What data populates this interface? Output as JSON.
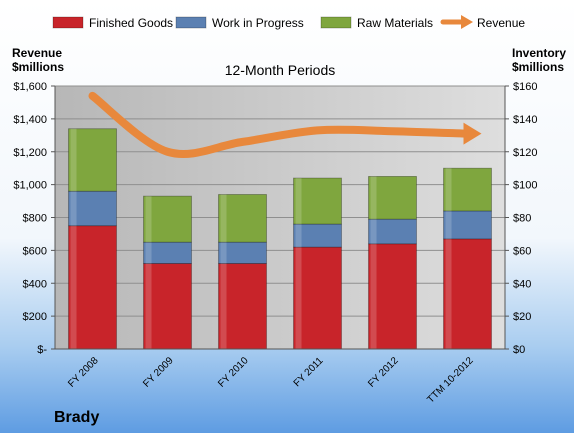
{
  "company": "Brady",
  "colors": {
    "finished_goods": "#c8242a",
    "work_in_progress": "#5b80b2",
    "raw_materials": "#7fa63e",
    "revenue": "#e8883c"
  },
  "chart_data": {
    "type": "bar",
    "subtype": "stacked-with-line",
    "title": "12-Month Periods",
    "left_axis_title": [
      "Revenue",
      "$millions"
    ],
    "right_axis_title": [
      "Inventory",
      "$millions"
    ],
    "categories": [
      "FY 2008",
      "FY 2009",
      "FY 2010",
      "FY 2011",
      "FY 2012",
      "TTM 10-2012"
    ],
    "left_ylim": [
      0,
      1600
    ],
    "right_ylim": [
      0,
      160
    ],
    "left_ticks": [
      {
        "value": 0,
        "label": "$-"
      },
      {
        "value": 200,
        "label": "$200"
      },
      {
        "value": 400,
        "label": "$400"
      },
      {
        "value": 600,
        "label": "$600"
      },
      {
        "value": 800,
        "label": "$800"
      },
      {
        "value": 1000,
        "label": "$1,000"
      },
      {
        "value": 1200,
        "label": "$1,200"
      },
      {
        "value": 1400,
        "label": "$1,400"
      },
      {
        "value": 1600,
        "label": "$1,600"
      }
    ],
    "right_ticks": [
      {
        "value": 0,
        "label": "$0"
      },
      {
        "value": 20,
        "label": "$20"
      },
      {
        "value": 40,
        "label": "$40"
      },
      {
        "value": 60,
        "label": "$60"
      },
      {
        "value": 80,
        "label": "$80"
      },
      {
        "value": 100,
        "label": "$100"
      },
      {
        "value": 120,
        "label": "$120"
      },
      {
        "value": 140,
        "label": "$140"
      },
      {
        "value": 160,
        "label": "$160"
      }
    ],
    "bar_series": [
      {
        "name": "Finished Goods",
        "axis": "right",
        "color_key": "finished_goods",
        "values": [
          75,
          52,
          52,
          62,
          64,
          67
        ]
      },
      {
        "name": "Work in Progress",
        "axis": "right",
        "color_key": "work_in_progress",
        "values": [
          21,
          13,
          13,
          14,
          15,
          17
        ]
      },
      {
        "name": "Raw Materials",
        "axis": "right",
        "color_key": "raw_materials",
        "values": [
          38,
          28,
          29,
          28,
          26,
          26
        ]
      }
    ],
    "line_series": [
      {
        "name": "Revenue",
        "axis": "left",
        "color_key": "revenue",
        "values": [
          1540,
          1200,
          1260,
          1330,
          1325,
          1310
        ]
      }
    ],
    "grid": true,
    "legend_position": "top"
  }
}
